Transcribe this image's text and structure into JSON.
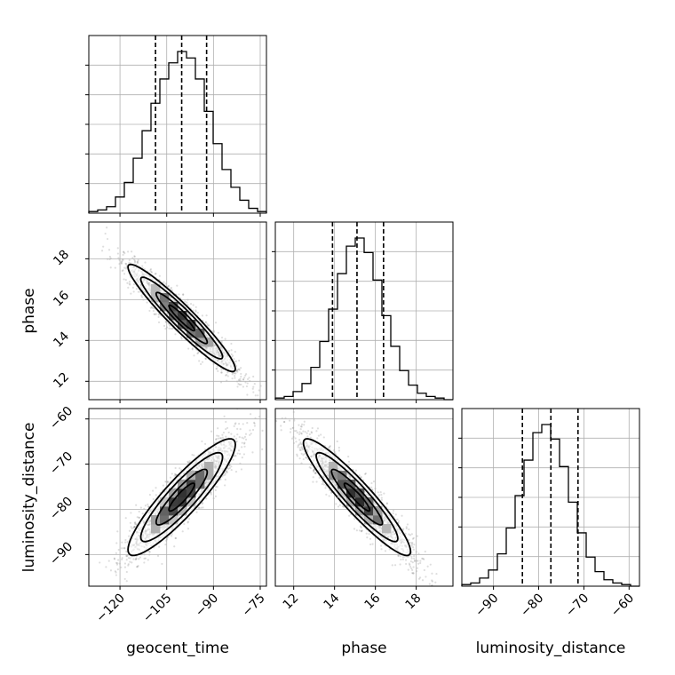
{
  "chart_data": {
    "type": "corner",
    "parameters": [
      "geocent_time",
      "phase",
      "luminosity_distance"
    ],
    "xlabels": [
      "geocent_time",
      "phase",
      "luminosity_distance"
    ],
    "ylabels": [
      "",
      "phase",
      "luminosity_distance"
    ],
    "ranges": {
      "geocent_time": [
        -130,
        -73
      ],
      "phase": [
        11.1,
        19.8
      ],
      "luminosity_distance": [
        -97,
        -57.7
      ]
    },
    "ticks": {
      "geocent_time": [
        -120,
        -105,
        -90,
        -75
      ],
      "phase": [
        12,
        14,
        16,
        18
      ],
      "luminosity_distance": [
        -90,
        -80,
        -70,
        -60
      ]
    },
    "tick_labels": {
      "geocent_time": [
        "−120",
        "−105",
        "−90",
        "−75"
      ],
      "phase": [
        "12",
        "14",
        "16",
        "18"
      ],
      "luminosity_distance": [
        "−90",
        "−80",
        "−70",
        "−60"
      ]
    },
    "quantiles": {
      "geocent_time": [
        -108.6,
        -100.2,
        -92.2
      ],
      "phase": [
        13.9,
        15.1,
        16.4
      ],
      "luminosity_distance": [
        -83.6,
        -77.3,
        -71.3
      ]
    },
    "histograms": {
      "geocent_time": {
        "edges": [
          -130,
          -127.15,
          -124.3,
          -121.45,
          -118.6,
          -115.75,
          -112.9,
          -110.05,
          -107.2,
          -104.35,
          -101.5,
          -98.65,
          -95.8,
          -92.95,
          -90.1,
          -87.25,
          -84.4,
          -81.55,
          -78.7,
          -75.85,
          -73
        ],
        "counts": [
          1,
          2,
          4,
          10,
          19,
          34,
          51,
          68,
          83,
          93,
          100,
          96,
          83,
          63,
          43,
          27,
          16,
          8,
          3,
          1
        ]
      },
      "phase": {
        "edges": [
          11.1,
          11.535,
          11.97,
          12.405,
          12.84,
          13.275,
          13.71,
          14.145,
          14.58,
          15.015,
          15.45,
          15.885,
          16.32,
          16.755,
          17.19,
          17.625,
          18.06,
          18.495,
          18.93,
          19.365,
          19.8
        ],
        "counts": [
          1,
          2,
          5,
          10,
          20,
          36,
          56,
          78,
          95,
          100,
          91,
          74,
          52,
          33,
          18,
          9,
          4,
          2,
          1,
          0
        ]
      },
      "luminosity_distance": {
        "edges": [
          -97,
          -95.035,
          -93.07,
          -91.105,
          -89.14,
          -87.175,
          -85.21,
          -83.245,
          -81.28,
          -79.315,
          -77.35,
          -75.385,
          -73.42,
          -71.455,
          -69.49,
          -67.525,
          -65.56,
          -63.595,
          -61.63,
          -59.665,
          -57.7
        ],
        "counts": [
          1,
          2,
          5,
          10,
          20,
          36,
          56,
          78,
          95,
          100,
          91,
          74,
          52,
          33,
          18,
          9,
          4,
          2,
          1,
          0
        ]
      }
    },
    "correlations": {
      "phase_vs_geocent_time": -0.95,
      "luminosity_distance_vs_geocent_time": 0.9,
      "luminosity_distance_vs_phase": -0.93
    },
    "grid": true
  }
}
